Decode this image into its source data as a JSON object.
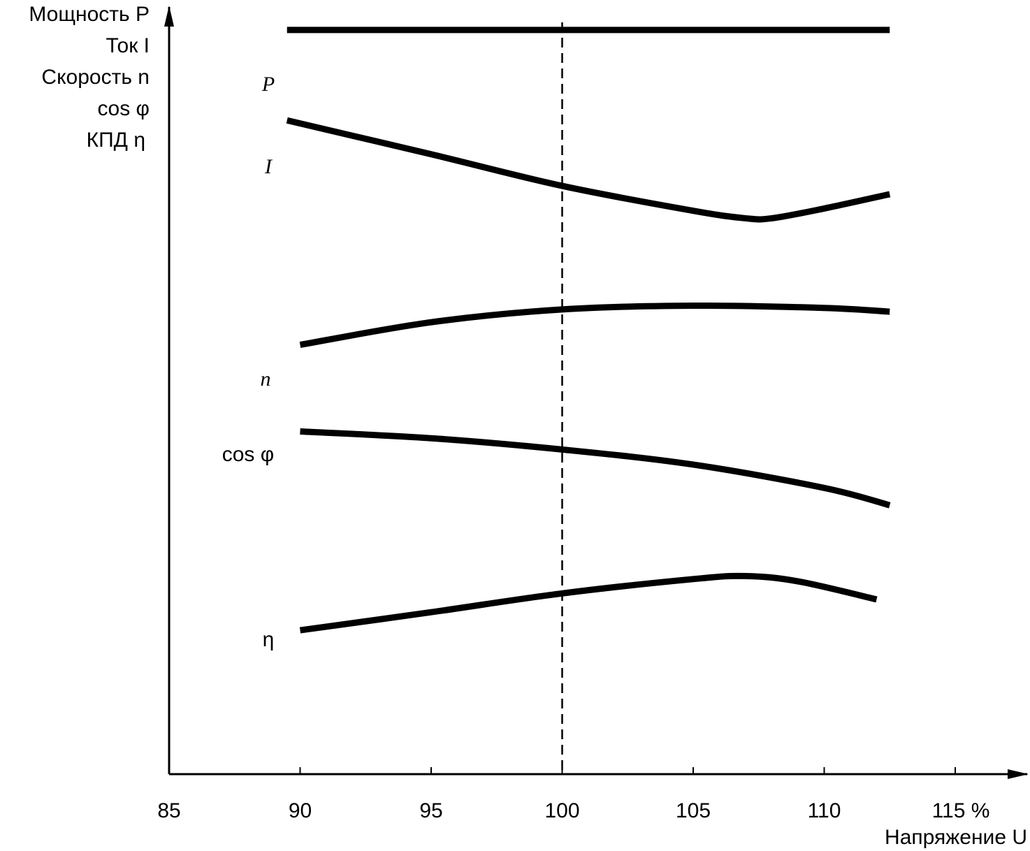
{
  "chart_data": {
    "type": "line",
    "title": "",
    "xlabel": "Напряжение U",
    "ylabel_lines": [
      "Мощность P",
      "Ток I",
      "Скорость n",
      "cos φ",
      "КПД η"
    ],
    "xlim": [
      85,
      115
    ],
    "ylim": [
      0,
      100
    ],
    "y_units": "relative (no scale shown)",
    "x_ticks": [
      "85",
      "90",
      "95",
      "100",
      "105",
      "110",
      "115 %"
    ],
    "reference_line": {
      "x": 100,
      "style": "dashed"
    },
    "grid": false,
    "series": [
      {
        "name": "P",
        "label": "P",
        "x": [
          89.5,
          112.5
        ],
        "y": [
          98.8,
          98.8
        ]
      },
      {
        "name": "I",
        "label": "I",
        "x": [
          89.5,
          95,
          100,
          105,
          107,
          108,
          110,
          112.5
        ],
        "y": [
          86.8,
          82.3,
          78.1,
          74.8,
          73.8,
          73.8,
          75.1,
          77.0
        ]
      },
      {
        "name": "n",
        "label": "n",
        "x": [
          90,
          95,
          100,
          105,
          110,
          112.5
        ],
        "y": [
          57.0,
          60.0,
          61.7,
          62.2,
          61.9,
          61.4
        ]
      },
      {
        "name": "cos φ",
        "label": "cos φ",
        "x": [
          90,
          95,
          100,
          105,
          110,
          112.5
        ],
        "y": [
          45.5,
          44.6,
          43.1,
          41.1,
          38.0,
          35.7
        ]
      },
      {
        "name": "η",
        "label": "η",
        "x": [
          90,
          95,
          100,
          105,
          107,
          109,
          112
        ],
        "y": [
          19.1,
          21.5,
          24.0,
          25.9,
          26.3,
          25.6,
          23.2
        ]
      }
    ]
  }
}
